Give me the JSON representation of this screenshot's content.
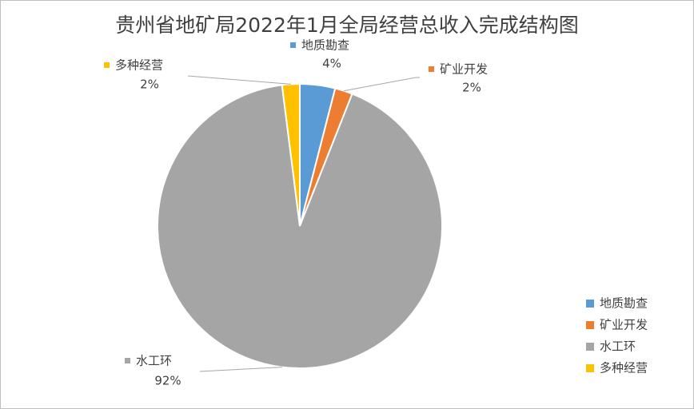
{
  "chart_data": {
    "type": "pie",
    "title": "贵州省地矿局2022年1月全局经营总收入完成结构图",
    "categories": [
      "地质勘查",
      "矿业开发",
      "水工环",
      "多种经营"
    ],
    "values": [
      4,
      2,
      92,
      2
    ],
    "value_labels": [
      "4%",
      "2%",
      "92%",
      "2%"
    ],
    "colors": [
      "#5b9bd5",
      "#ed7d31",
      "#a5a5a5",
      "#ffc000"
    ],
    "legend": "right"
  }
}
